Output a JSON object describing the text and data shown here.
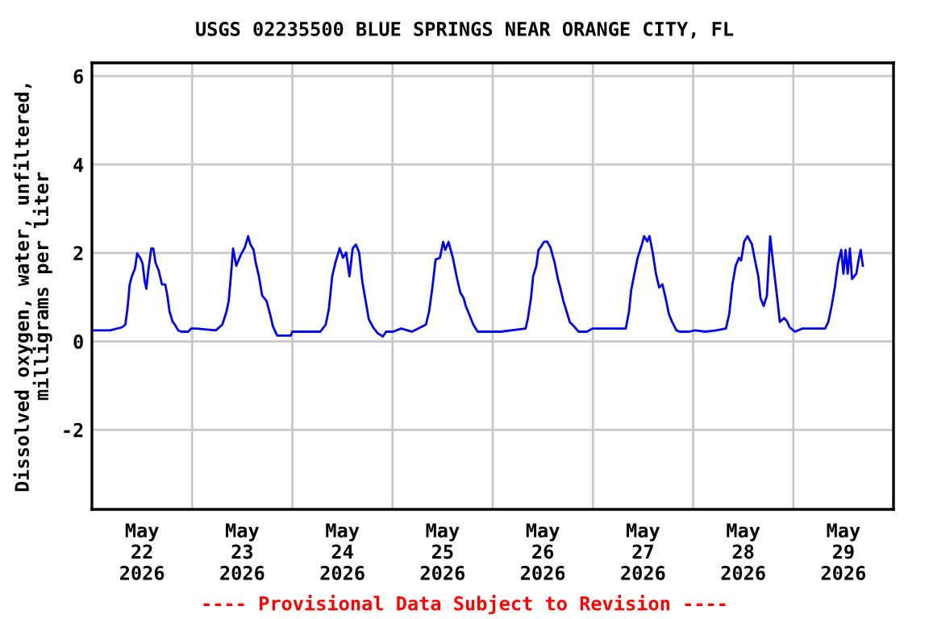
{
  "chart_data": {
    "type": "line",
    "title": "USGS 02235500 BLUE SPRINGS NEAR ORANGE CITY, FL",
    "ylabel": "Dissolved oxygen, water, unfiltered,\nmilligrams per liter",
    "annotations": [
      "---- Provisional Data Subject to Revision ----"
    ],
    "xlim": [
      "2026-05-22T00:00",
      "2026-05-30T00:00"
    ],
    "xticks": [
      {
        "value": "2026-05-22T12:00",
        "label": "May\n22\n2026"
      },
      {
        "value": "2026-05-23T12:00",
        "label": "May\n23\n2026"
      },
      {
        "value": "2026-05-24T12:00",
        "label": "May\n24\n2026"
      },
      {
        "value": "2026-05-25T12:00",
        "label": "May\n25\n2026"
      },
      {
        "value": "2026-05-26T12:00",
        "label": "May\n26\n2026"
      },
      {
        "value": "2026-05-27T12:00",
        "label": "May\n27\n2026"
      },
      {
        "value": "2026-05-28T12:00",
        "label": "May\n28\n2026"
      },
      {
        "value": "2026-05-29T12:00",
        "label": "May\n29\n2026"
      },
      {
        "value": "2026-05-23T00:00",
        "label": null
      },
      {
        "value": "2026-05-24T00:00",
        "label": null
      },
      {
        "value": "2026-05-25T00:00",
        "label": null
      },
      {
        "value": "2026-05-26T00:00",
        "label": null
      },
      {
        "value": "2026-05-27T00:00",
        "label": null
      },
      {
        "value": "2026-05-28T00:00",
        "label": null
      },
      {
        "value": "2026-05-29T00:00",
        "label": null
      }
    ],
    "ylim": [
      -3.8,
      6.3
    ],
    "yticks": [
      -2,
      0,
      2,
      4,
      6
    ],
    "grid": true,
    "legend": false,
    "series": [
      {
        "color": "#0000ff",
        "x": [
          "2026-05-22T00:00",
          "2026-05-22T04:23",
          "2026-05-22T07:14",
          "2026-05-22T08:00",
          "2026-05-22T08:31",
          "2026-05-22T09:02",
          "2026-05-22T09:33",
          "2026-05-22T10:19",
          "2026-05-22T10:50",
          "2026-05-22T11:37",
          "2026-05-22T12:08",
          "2026-05-22T12:39",
          "2026-05-22T13:02",
          "2026-05-22T13:25",
          "2026-05-22T14:12",
          "2026-05-22T14:43",
          "2026-05-22T15:14",
          "2026-05-22T16:00",
          "2026-05-22T16:46",
          "2026-05-22T17:33",
          "2026-05-22T18:04",
          "2026-05-22T18:35",
          "2026-05-22T19:21",
          "2026-05-22T19:52",
          "2026-05-22T20:39",
          "2026-05-22T21:25",
          "2026-05-22T23:06",
          "2026-05-22T23:44",
          "2026-05-23T01:02",
          "2026-05-23T05:41",
          "2026-05-23T07:14",
          "2026-05-23T08:15",
          "2026-05-23T08:46",
          "2026-05-23T09:17",
          "2026-05-23T09:48",
          "2026-05-23T10:35",
          "2026-05-23T11:37",
          "2026-05-23T12:39",
          "2026-05-23T13:25",
          "2026-05-23T13:56",
          "2026-05-23T14:43",
          "2026-05-23T15:14",
          "2026-05-23T16:00",
          "2026-05-23T16:46",
          "2026-05-23T17:48",
          "2026-05-23T18:35",
          "2026-05-23T19:21",
          "2026-05-23T20:23",
          "2026-05-23T23:37",
          "2026-05-24T00:00",
          "2026-05-24T01:33",
          "2026-05-24T06:43",
          "2026-05-24T08:00",
          "2026-05-24T08:46",
          "2026-05-24T09:33",
          "2026-05-24T10:19",
          "2026-05-24T11:21",
          "2026-05-24T12:08",
          "2026-05-24T12:54",
          "2026-05-24T13:41",
          "2026-05-24T14:27",
          "2026-05-24T15:14",
          "2026-05-24T16:00",
          "2026-05-24T16:46",
          "2026-05-24T17:33",
          "2026-05-24T18:19",
          "2026-05-24T19:21",
          "2026-05-24T20:23",
          "2026-05-24T21:41",
          "2026-05-24T22:27",
          "2026-05-25T00:08",
          "2026-05-25T02:04",
          "2026-05-25T04:39",
          "2026-05-25T08:00",
          "2026-05-25T08:46",
          "2026-05-25T09:33",
          "2026-05-25T10:19",
          "2026-05-25T11:21",
          "2026-05-25T12:08",
          "2026-05-25T12:39",
          "2026-05-25T13:25",
          "2026-05-25T14:27",
          "2026-05-25T15:29",
          "2026-05-25T16:15",
          "2026-05-25T17:02",
          "2026-05-25T17:33",
          "2026-05-25T18:35",
          "2026-05-25T19:21",
          "2026-05-25T20:23",
          "2026-05-26T00:00",
          "2026-05-26T01:56",
          "2026-05-26T07:52",
          "2026-05-26T08:23",
          "2026-05-26T09:10",
          "2026-05-26T09:41",
          "2026-05-26T10:27",
          "2026-05-26T10:58",
          "2026-05-26T11:29",
          "2026-05-26T12:15",
          "2026-05-26T13:02",
          "2026-05-26T13:48",
          "2026-05-26T14:50",
          "2026-05-26T15:37",
          "2026-05-26T16:08",
          "2026-05-26T16:54",
          "2026-05-26T17:41",
          "2026-05-26T18:27",
          "2026-05-26T19:29",
          "2026-05-26T20:31",
          "2026-05-26T22:35",
          "2026-05-26T23:52",
          "2026-05-27T03:44",
          "2026-05-27T07:52",
          "2026-05-27T08:39",
          "2026-05-27T09:10",
          "2026-05-27T09:56",
          "2026-05-27T10:43",
          "2026-05-27T11:44",
          "2026-05-27T12:15",
          "2026-05-27T13:02",
          "2026-05-27T13:33",
          "2026-05-27T14:19",
          "2026-05-27T15:06",
          "2026-05-27T15:52",
          "2026-05-27T16:39",
          "2026-05-27T17:25",
          "2026-05-27T18:12",
          "2026-05-27T18:58",
          "2026-05-27T20:00",
          "2026-05-27T20:46",
          "2026-05-27T23:06",
          "2026-05-28T00:23",
          "2026-05-28T02:58",
          "2026-05-28T05:33",
          "2026-05-28T07:52",
          "2026-05-28T08:39",
          "2026-05-28T09:25",
          "2026-05-28T10:12",
          "2026-05-28T10:58",
          "2026-05-28T11:29",
          "2026-05-28T12:15",
          "2026-05-28T13:02",
          "2026-05-28T14:04",
          "2026-05-28T14:50",
          "2026-05-28T15:37",
          "2026-05-28T16:08",
          "2026-05-28T16:54",
          "2026-05-28T17:41",
          "2026-05-28T18:27",
          "2026-05-28T19:14",
          "2026-05-28T20:00",
          "2026-05-28T20:46",
          "2026-05-28T21:48",
          "2026-05-28T22:35",
          "2026-05-28T23:06",
          "2026-05-29T00:23",
          "2026-05-29T02:11",
          "2026-05-29T03:29",
          "2026-05-29T07:37",
          "2026-05-29T08:23",
          "2026-05-29T09:10",
          "2026-05-29T09:56",
          "2026-05-29T10:43",
          "2026-05-29T11:29",
          "2026-05-29T12:00",
          "2026-05-29T12:31",
          "2026-05-29T13:02",
          "2026-05-29T13:33",
          "2026-05-29T14:04",
          "2026-05-29T15:06",
          "2026-05-29T15:37",
          "2026-05-29T16:08",
          "2026-05-29T16:39"
        ],
        "values": [
          0.25,
          0.25,
          0.32,
          0.38,
          0.74,
          1.28,
          1.47,
          1.65,
          1.99,
          1.88,
          1.76,
          1.35,
          1.19,
          1.53,
          2.1,
          2.1,
          1.78,
          1.6,
          1.29,
          1.29,
          1.04,
          0.68,
          0.44,
          0.38,
          0.25,
          0.22,
          0.22,
          0.29,
          0.29,
          0.25,
          0.38,
          0.68,
          0.92,
          1.47,
          2.1,
          1.71,
          1.95,
          2.13,
          2.38,
          2.2,
          2.07,
          1.78,
          1.47,
          1.04,
          0.92,
          0.65,
          0.34,
          0.13,
          0.13,
          0.22,
          0.22,
          0.22,
          0.38,
          0.74,
          1.47,
          1.78,
          2.11,
          1.89,
          2.01,
          1.47,
          2.1,
          2.19,
          2.01,
          1.35,
          0.92,
          0.5,
          0.32,
          0.19,
          0.11,
          0.22,
          0.22,
          0.29,
          0.22,
          0.38,
          0.68,
          1.22,
          1.85,
          1.89,
          2.25,
          2.07,
          2.25,
          1.89,
          1.41,
          1.1,
          0.98,
          0.8,
          0.56,
          0.38,
          0.22,
          0.22,
          0.22,
          0.29,
          0.5,
          0.98,
          1.47,
          1.71,
          2.07,
          2.13,
          2.25,
          2.26,
          2.13,
          1.78,
          1.41,
          1.23,
          0.92,
          0.68,
          0.44,
          0.34,
          0.22,
          0.22,
          0.29,
          0.29,
          0.29,
          0.68,
          1.16,
          1.53,
          1.89,
          2.19,
          2.38,
          2.26,
          2.38,
          2.01,
          1.53,
          1.22,
          1.29,
          0.98,
          0.62,
          0.44,
          0.25,
          0.22,
          0.22,
          0.25,
          0.22,
          0.25,
          0.29,
          0.62,
          1.29,
          1.71,
          1.89,
          1.83,
          2.26,
          2.38,
          2.2,
          1.83,
          1.47,
          0.98,
          0.8,
          1.04,
          2.38,
          1.71,
          1.1,
          0.44,
          0.53,
          0.44,
          0.32,
          0.22,
          0.29,
          0.29,
          0.29,
          0.44,
          0.8,
          1.22,
          1.77,
          2.07,
          1.53,
          2.07,
          1.53,
          2.1,
          1.41,
          1.53,
          1.83,
          2.07,
          1.71
        ]
      }
    ]
  }
}
